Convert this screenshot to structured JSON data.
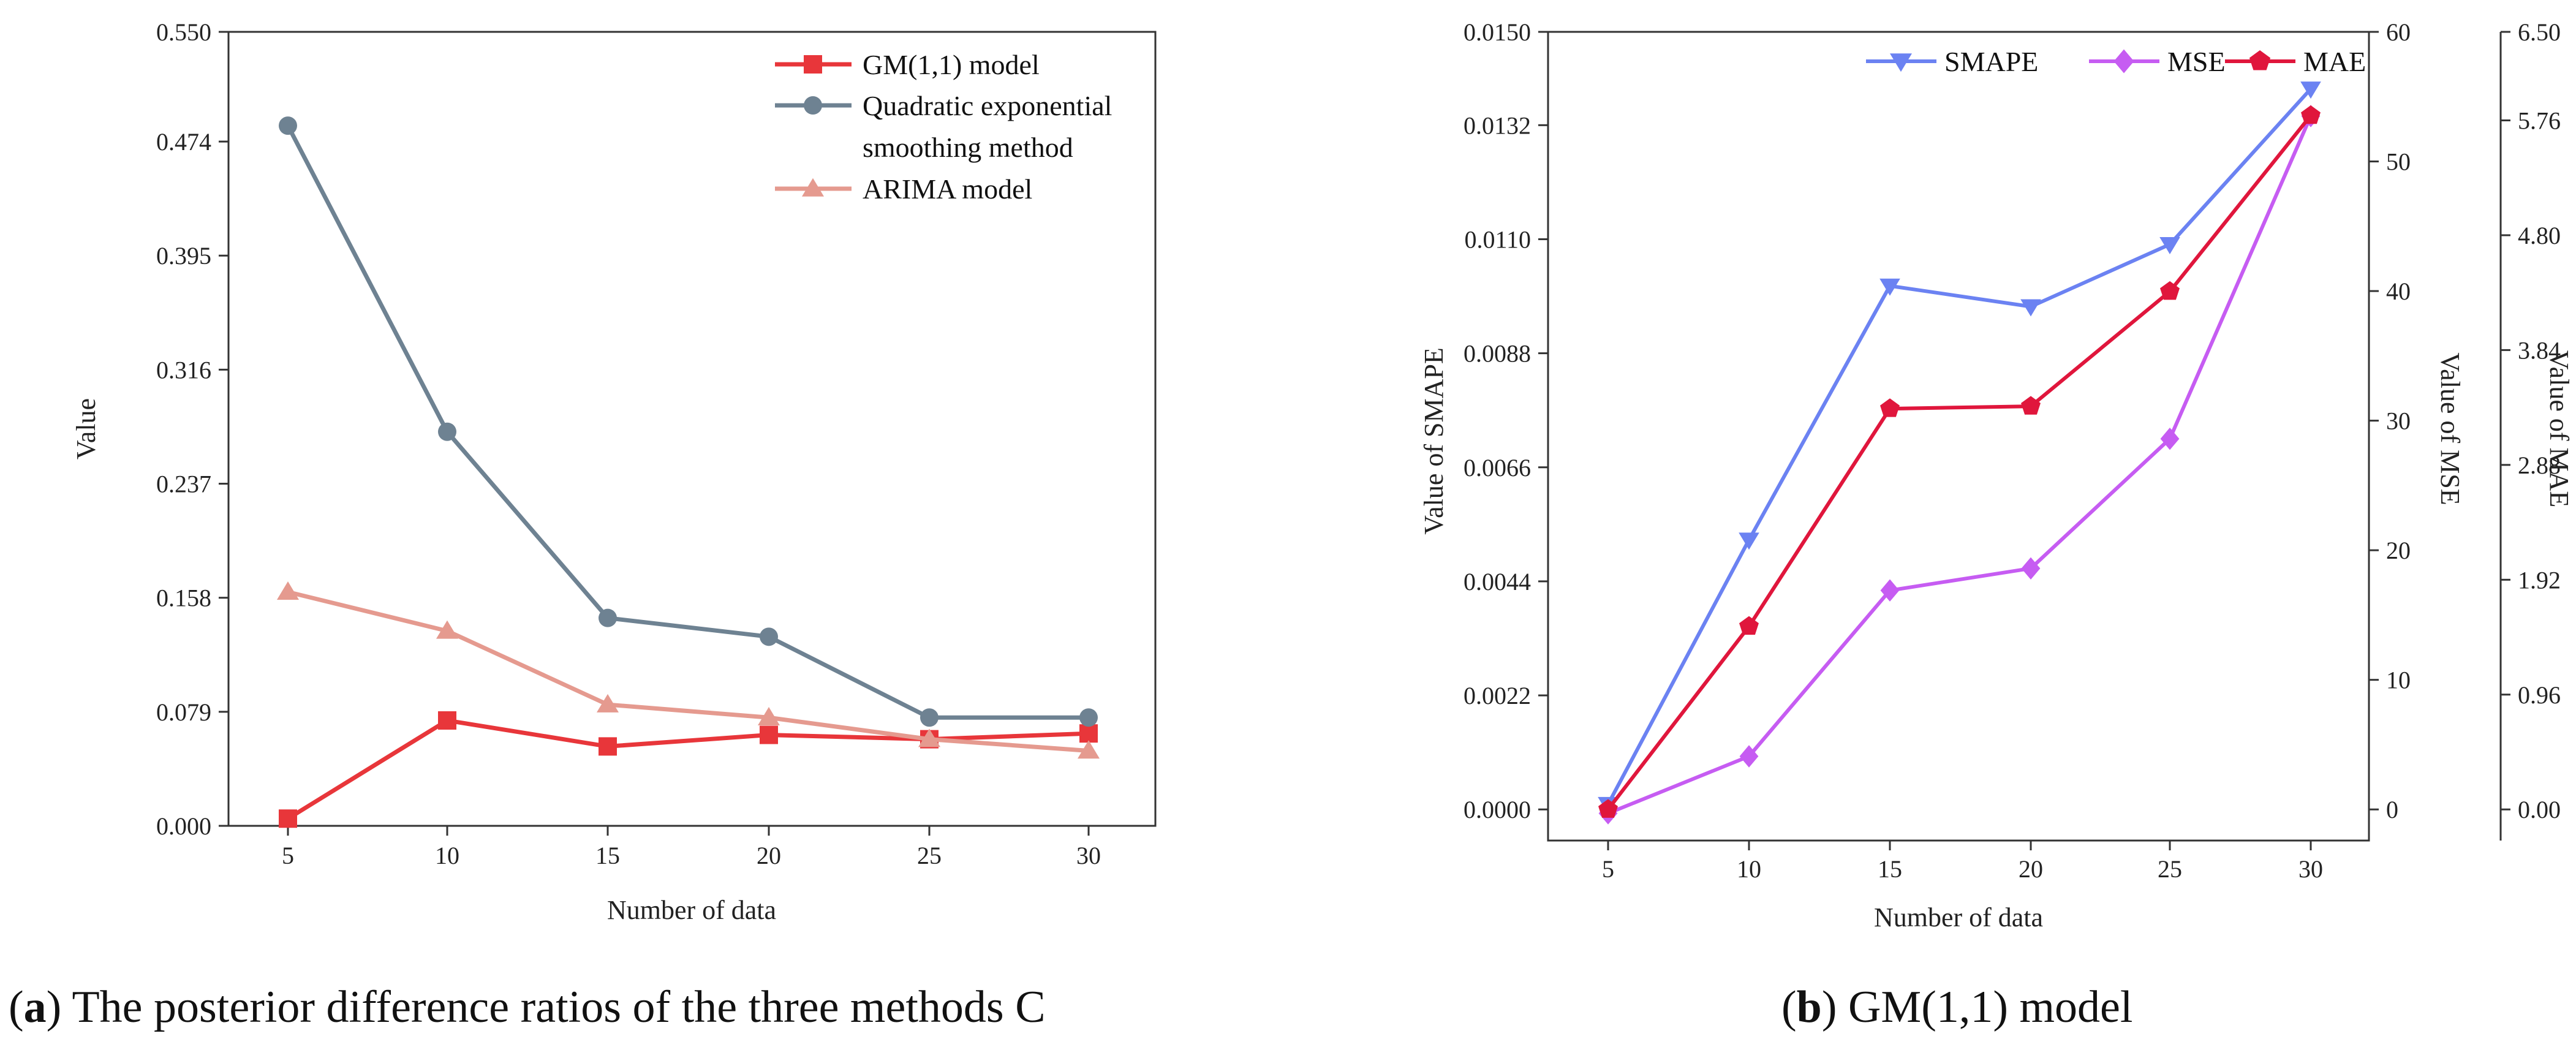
{
  "colors": {
    "gm": "#e8363a",
    "qes": "#6e8292",
    "arima": "#e59a8f",
    "smape": "#6b82f2",
    "mse": "#c65cf2",
    "mae": "#e0163c"
  },
  "chart_data": [
    {
      "type": "line",
      "title": "",
      "caption_letter": "a",
      "caption_text": ") The posterior difference ratios of the three methods C",
      "caption_paren": "(",
      "xlabel": "Number of data",
      "ylabel": "Value",
      "categories": [
        5,
        10,
        15,
        20,
        25,
        30
      ],
      "x_ticks": [
        "5",
        "10",
        "15",
        "20",
        "25",
        "30"
      ],
      "ylim": [
        0,
        0.55
      ],
      "y_ticks": [
        0.0,
        0.079,
        0.158,
        0.237,
        0.316,
        0.395,
        0.474,
        0.55
      ],
      "y_tick_labels": [
        "0.000",
        "0.079",
        "0.158",
        "0.237",
        "0.316",
        "0.395",
        "0.474",
        "0.550"
      ],
      "legend_position": "top-right",
      "series": [
        {
          "key": "gm",
          "name": "GM(1,1) model",
          "marker": "square",
          "values": [
            0.005,
            0.073,
            0.055,
            0.063,
            0.06,
            0.064
          ]
        },
        {
          "key": "qes",
          "name": "Quadratic exponential smoothing method",
          "legend_lines": [
            "Quadratic exponential",
            "smoothing method"
          ],
          "marker": "circle",
          "values": [
            0.485,
            0.273,
            0.144,
            0.131,
            0.075,
            0.075
          ]
        },
        {
          "key": "arima",
          "name": "ARIMA model",
          "marker": "triangle-up",
          "values": [
            0.162,
            0.135,
            0.084,
            0.075,
            0.06,
            0.052
          ]
        }
      ]
    },
    {
      "type": "line",
      "title": "",
      "caption_letter": "b",
      "caption_text": ") GM(1,1) model",
      "caption_paren": "(",
      "xlabel": "Number of data",
      "categories": [
        5,
        10,
        15,
        20,
        25,
        30
      ],
      "x_ticks": [
        "5",
        "10",
        "15",
        "20",
        "25",
        "30"
      ],
      "legend_position": "top",
      "axes": {
        "left": {
          "label": "Value of SMAPE",
          "range": [
            -0.0006,
            0.015
          ],
          "ticks": [
            0,
            0.0022,
            0.0044,
            0.0066,
            0.0088,
            0.011,
            0.0132,
            0.015
          ],
          "tick_labels": [
            "0.0000",
            "0.0022",
            "0.0044",
            "0.0066",
            "0.0088",
            "0.0110",
            "0.0132",
            "0.0150"
          ]
        },
        "right1": {
          "label": "Value of MSE",
          "range": [
            -2.4,
            60
          ],
          "ticks": [
            0,
            10,
            20,
            30,
            40,
            50,
            60
          ],
          "tick_labels": [
            "0",
            "10",
            "20",
            "30",
            "40",
            "50",
            "60"
          ]
        },
        "right2": {
          "label": "Value of MAE",
          "range": [
            -0.26,
            6.5
          ],
          "ticks": [
            0,
            0.96,
            1.92,
            2.88,
            3.84,
            4.8,
            5.76,
            6.5
          ],
          "tick_labels": [
            "0.00",
            "0.96",
            "1.92",
            "2.88",
            "3.84",
            "4.80",
            "5.76",
            "6.50"
          ]
        }
      },
      "series": [
        {
          "key": "smape",
          "name": "SMAPE",
          "axis": "left",
          "marker": "triangle-down",
          "values": [
            0.0001,
            0.0052,
            0.0101,
            0.0097,
            0.0109,
            0.0139
          ]
        },
        {
          "key": "mse",
          "name": "MSE",
          "axis": "right1",
          "marker": "diamond",
          "values": [
            -0.3,
            4.1,
            16.9,
            18.6,
            28.6,
            53.5
          ]
        },
        {
          "key": "mae",
          "name": "MAE",
          "axis": "right2",
          "marker": "pentagon",
          "values": [
            0.0,
            1.53,
            3.35,
            3.37,
            4.33,
            5.8
          ]
        }
      ]
    }
  ]
}
